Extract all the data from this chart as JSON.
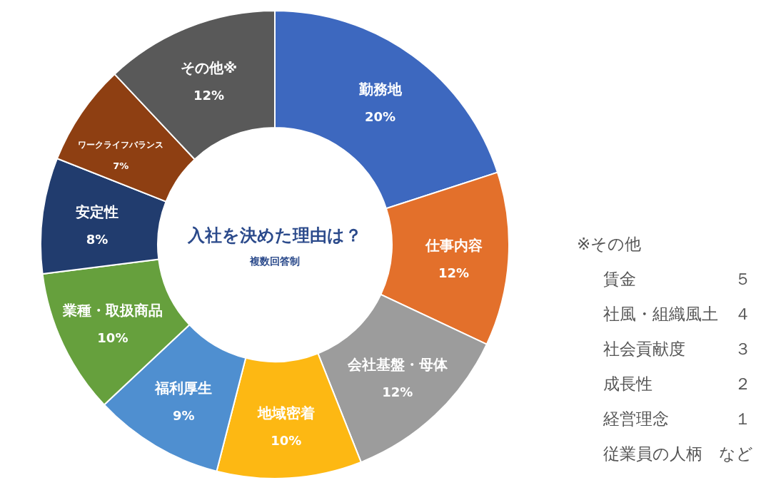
{
  "chart_data": {
    "type": "donut",
    "title": "入社を決めた理由は？",
    "subtitle": "複数回答制",
    "categories": [
      "勤務地",
      "仕事内容",
      "会社基盤・母体",
      "地域密着",
      "福利厚生",
      "業種・取扱商品",
      "安定性",
      "ワークライフバランス",
      "その他※"
    ],
    "values": [
      20,
      12,
      12,
      10,
      9,
      10,
      8,
      7,
      12
    ],
    "value_labels": [
      "20%",
      "12%",
      "12%",
      "10%",
      "9%",
      "10%",
      "8%",
      "7%",
      "12%"
    ],
    "colors": [
      "#3d68bf",
      "#e3702b",
      "#9c9c9c",
      "#fdb813",
      "#4f8fd0",
      "#66a03d",
      "#213c6e",
      "#8e3f12",
      "#595959"
    ],
    "annotations": [
      "※その他",
      "賃金　　　　　　５",
      "社風・組織風土　４",
      "社会貢献度　　　３",
      "成長性　　　　　２",
      "経営理念　　　　１",
      "従業員の人柄　など"
    ]
  }
}
